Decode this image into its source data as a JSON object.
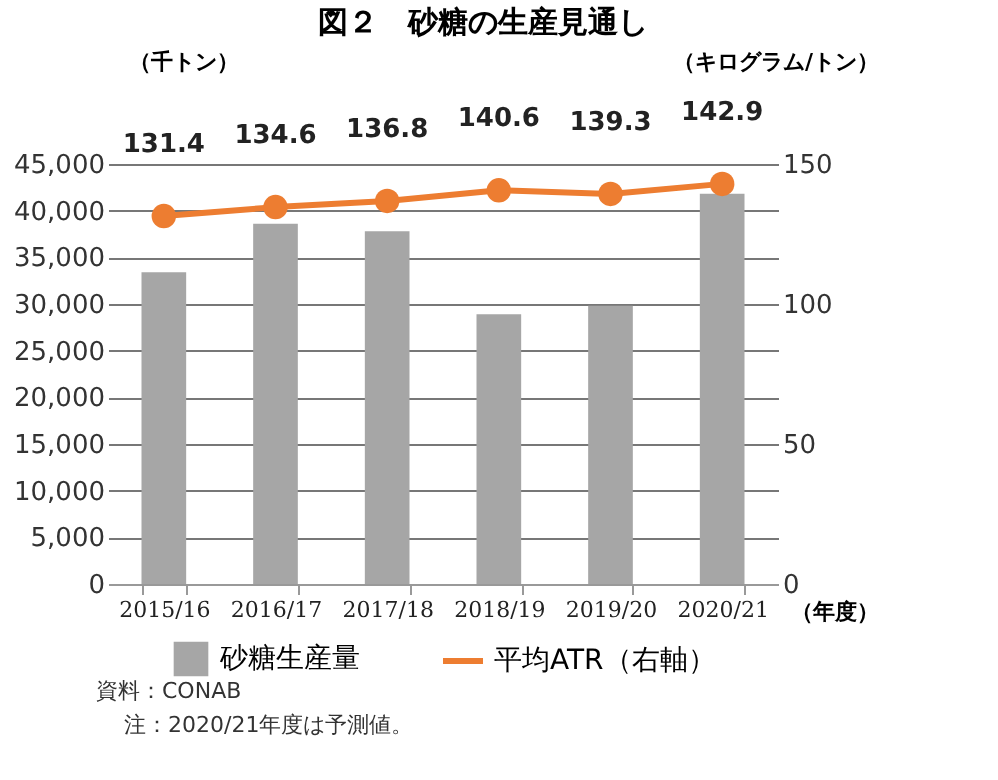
{
  "chart_data": {
    "type": "bar",
    "title": "図２　砂糖の生産見通し",
    "categories": [
      "2015/16",
      "2016/17",
      "2017/18",
      "2018/19",
      "2019/20",
      "2020/21"
    ],
    "xlabel": "（年度）",
    "ylabel": "（千トン）",
    "y2label": "（キログラム/トン）",
    "series": [
      {
        "name": "砂糖生産量",
        "color": "#a6a6a6",
        "values": [
          33400,
          38600,
          37800,
          28900,
          29800,
          41800
        ]
      },
      {
        "name": "平均ATR（右軸）",
        "type": "line",
        "axis": "y2",
        "color": "#ed7d31",
        "marker": "circle",
        "line_style": "solid",
        "values": [
          131.4,
          134.6,
          136.8,
          140.6,
          139.3,
          142.9
        ],
        "value_labels": [
          "131.4",
          "134.6",
          "136.8",
          "140.6",
          "139.3",
          "142.9"
        ]
      }
    ],
    "ylim": [
      0,
      45000
    ],
    "yticks": [
      0,
      {
        "value": 5000,
        "label": "5,000"
      },
      {
        "value": 10000,
        "label": "10,000"
      },
      {
        "value": 15000,
        "label": "15,000"
      },
      {
        "value": 20000,
        "label": "20,000"
      },
      {
        "value": 25000,
        "label": "25,000"
      },
      {
        "value": 30000,
        "label": "30,000"
      },
      {
        "value": 35000,
        "label": "35,000"
      },
      {
        "value": 40000,
        "label": "40,000"
      },
      {
        "value": 45000,
        "label": "45,000"
      }
    ],
    "y2lim": [
      0,
      150
    ],
    "y2ticks": [
      0,
      50,
      100,
      150
    ],
    "grid": "y",
    "legend": "bottom",
    "annotations": [
      "資料：CONAB",
      "注：2020/21年度は予測値。"
    ]
  }
}
